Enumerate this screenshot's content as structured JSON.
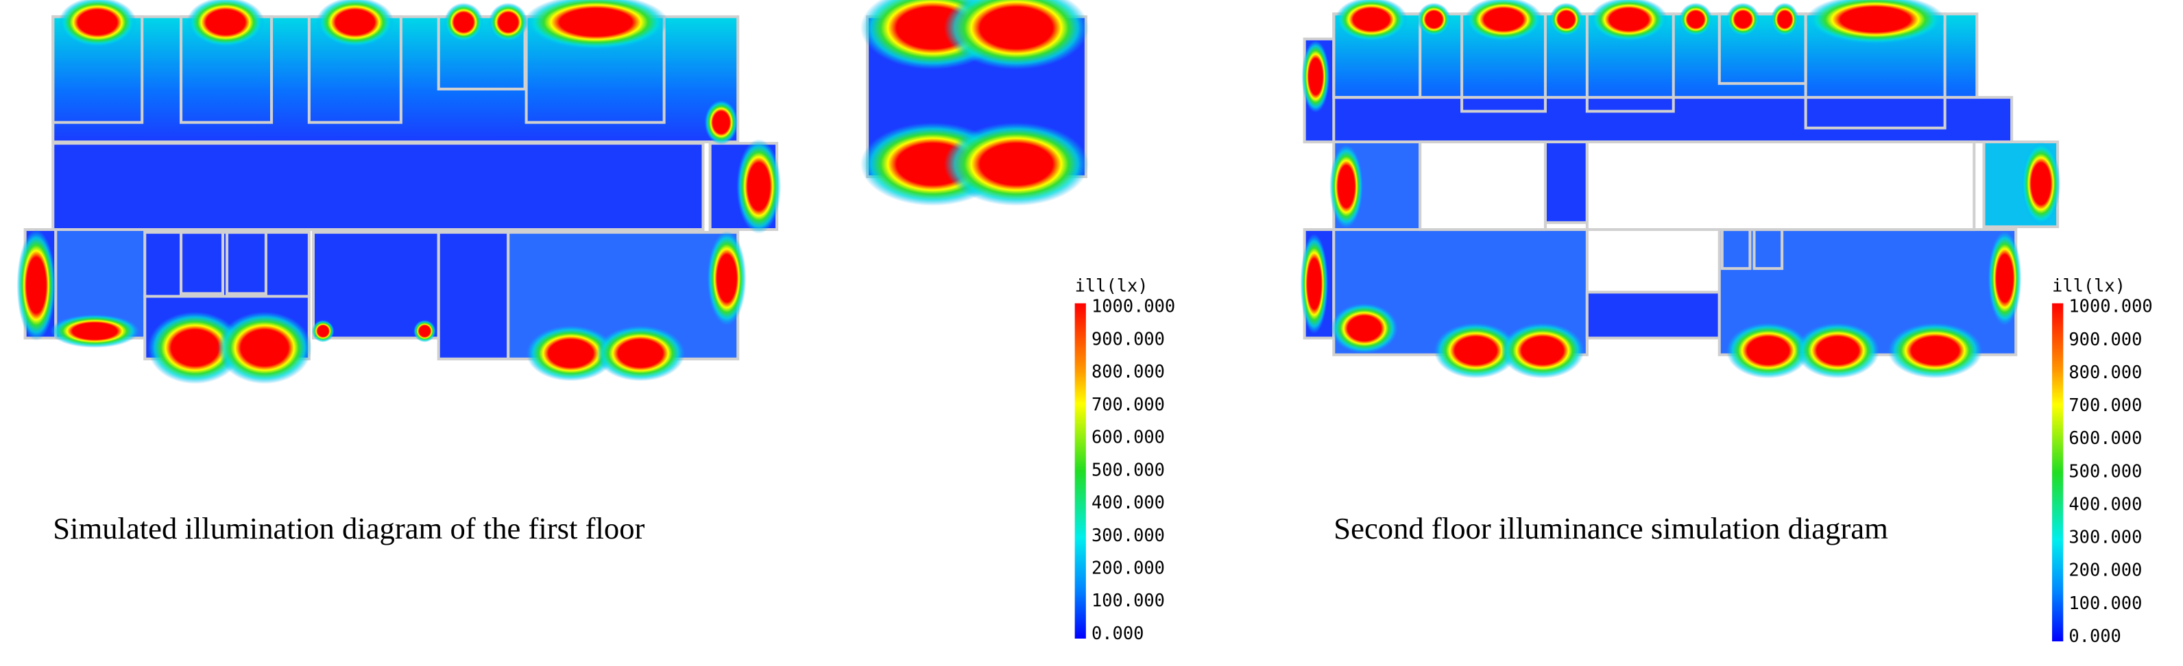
{
  "figures": [
    {
      "caption": "Simulated illumination diagram of the first floor",
      "legend": {
        "title": "ill(lx)",
        "ticks": [
          "1000.000",
          "900.000",
          "800.000",
          "700.000",
          "600.000",
          "500.000",
          "400.000",
          "300.000",
          "200.000",
          "100.000",
          "0.000"
        ]
      }
    },
    {
      "caption": "Second floor illuminance simulation diagram",
      "legend": {
        "title": "ill(lx)",
        "ticks": [
          "1000.000",
          "900.000",
          "800.000",
          "700.000",
          "600.000",
          "500.000",
          "400.000",
          "300.000",
          "200.000",
          "100.000",
          "0.000"
        ]
      }
    }
  ]
}
